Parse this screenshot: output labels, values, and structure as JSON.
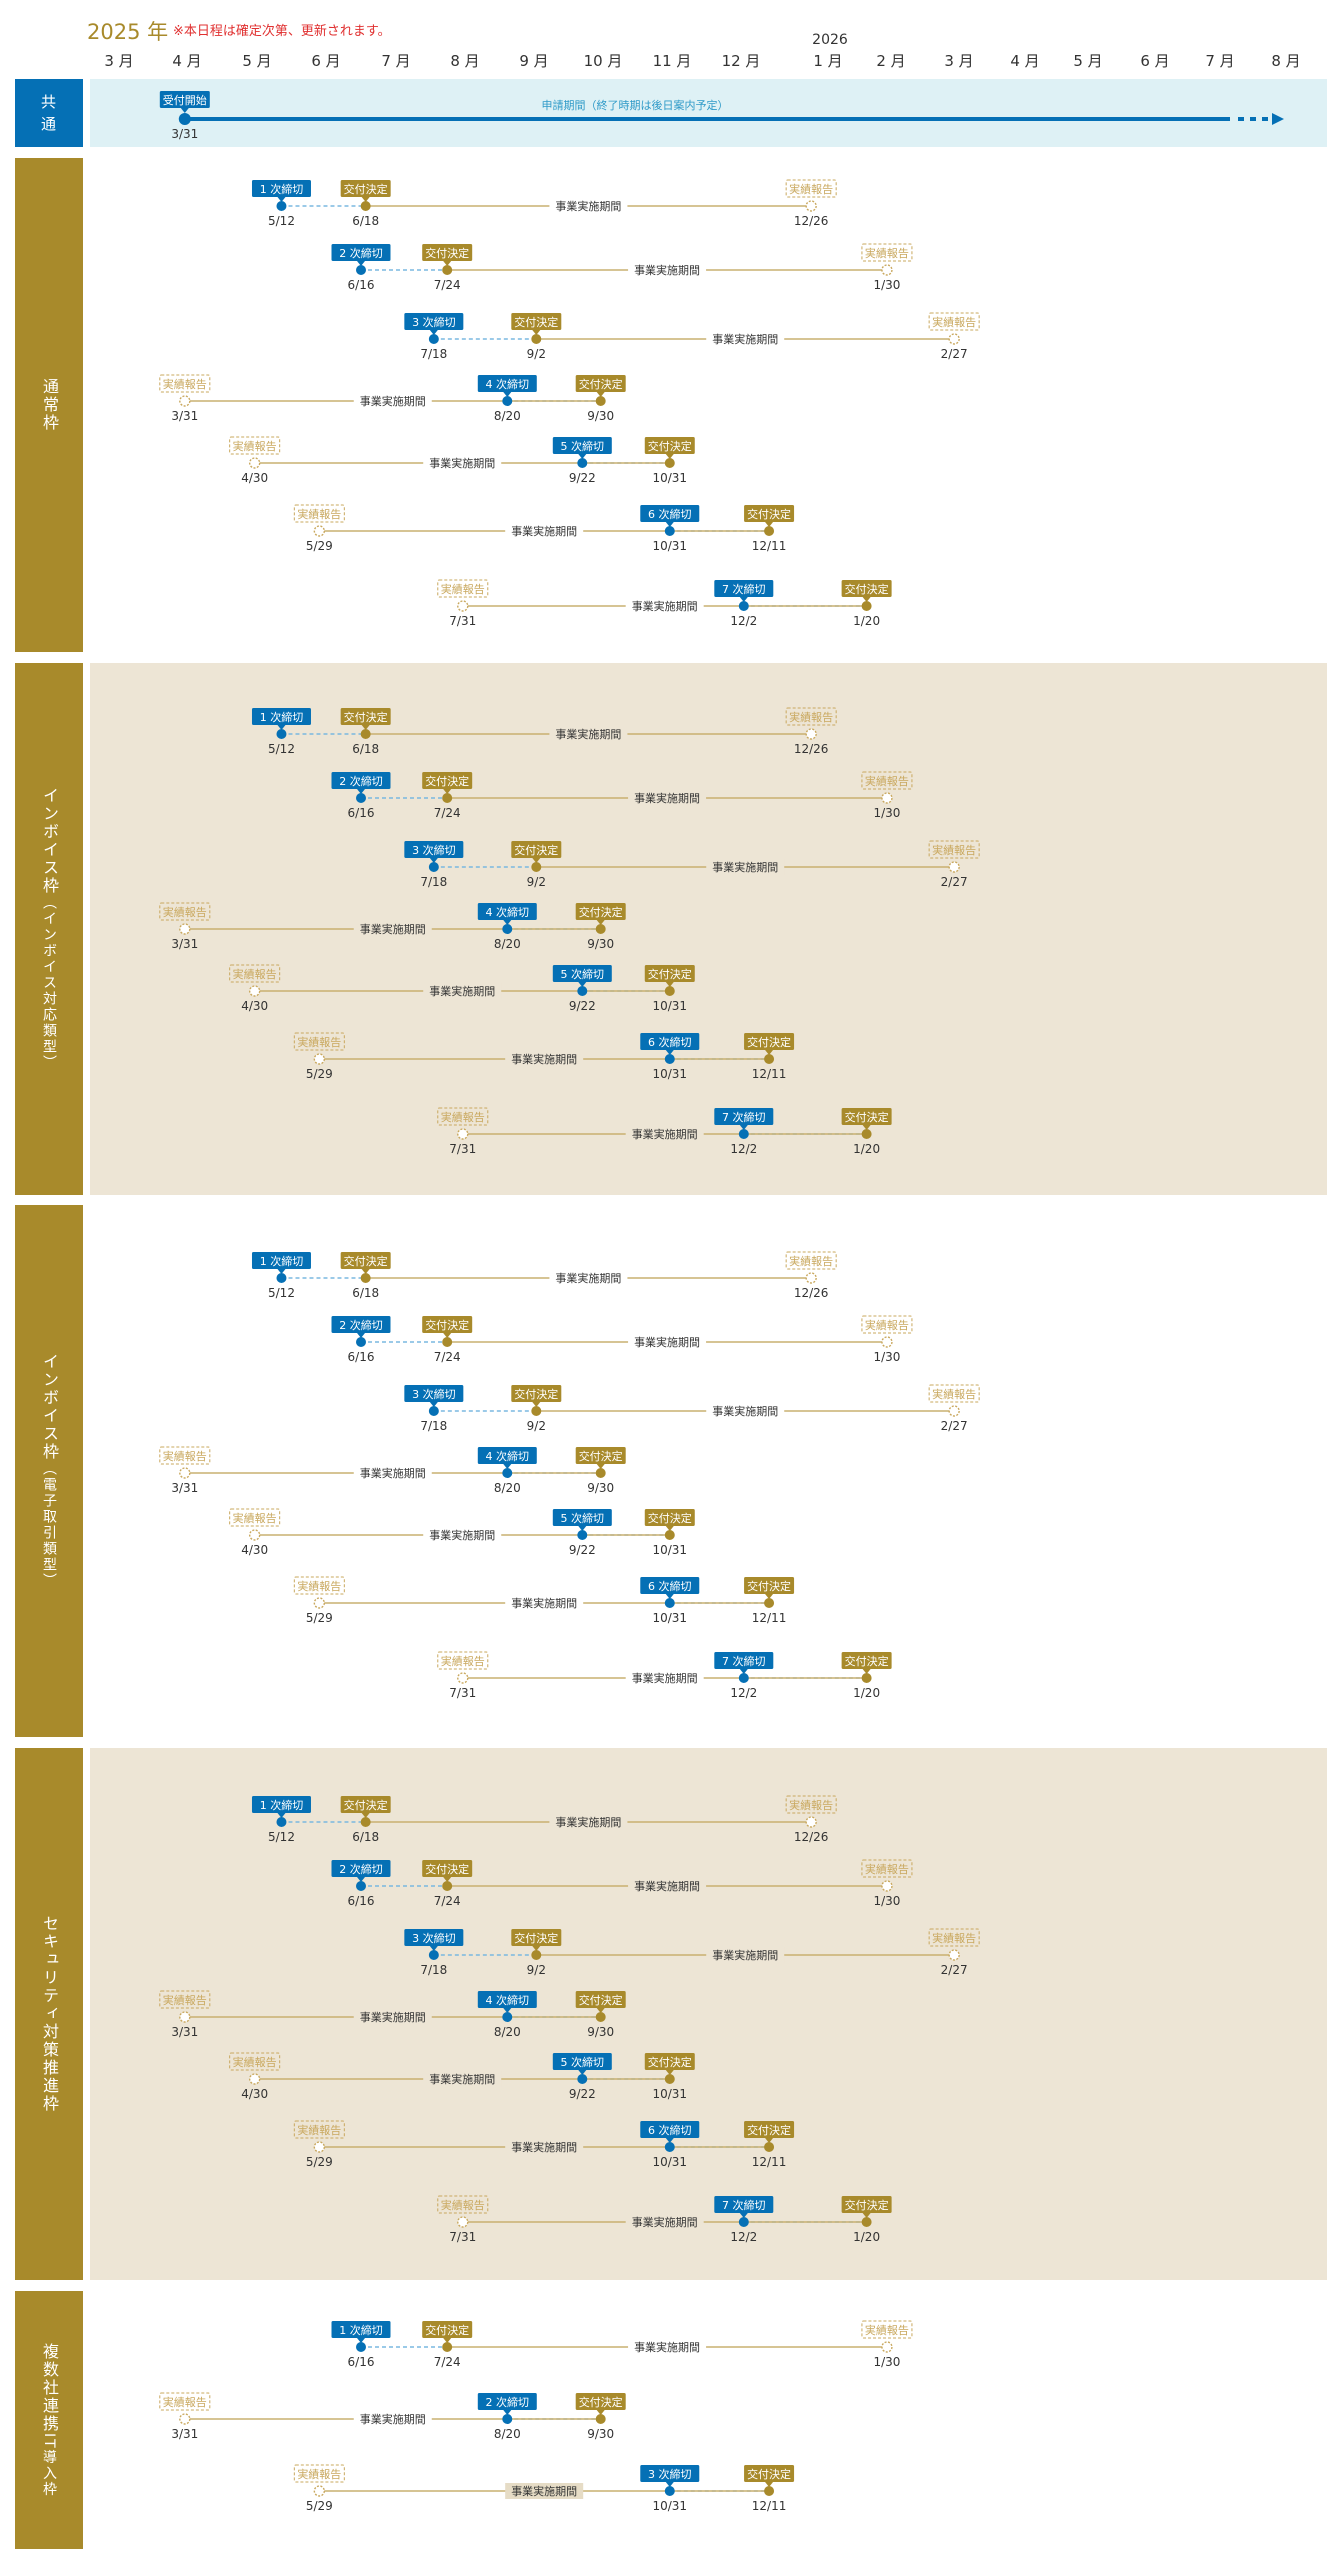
{
  "header": {
    "year_title": "2025 年",
    "note": "※本日程は確定次第、更新されます。",
    "next_year": "2026",
    "months": [
      "3 月",
      "4 月",
      "5 月",
      "6 月",
      "7 月",
      "8 月",
      "9 月",
      "10 月",
      "11 月",
      "12 月",
      "1 月",
      "2 月",
      "3 月",
      "4 月",
      "5 月",
      "6 月",
      "7 月",
      "8 月"
    ]
  },
  "labels": {
    "start_label": "受付開始",
    "start_date": "3/31",
    "application_period": "申請期間（終了時期は後日案内予定）",
    "decision": "交付決定",
    "report": "実績報告",
    "period": "事業実施期間"
  },
  "colors": {
    "gold": "#a88a2b",
    "blue": "#0570b5",
    "beige_bg": "#ede5d5",
    "common_bg": "#def1f5",
    "report_gold": "#c9a85e"
  },
  "sections": [
    {
      "id": "common",
      "label": "共通",
      "sublabel": "",
      "kind": "common"
    },
    {
      "id": "regular",
      "label": "通常枠",
      "sublabel": "",
      "kind": "rounds",
      "rounds": [
        {
          "name": "1 次締切",
          "deadline": "5/12",
          "decision": "6/18",
          "report": "12/26"
        },
        {
          "name": "2 次締切",
          "deadline": "6/16",
          "decision": "7/24",
          "report": "1/30"
        },
        {
          "name": "3 次締切",
          "deadline": "7/18",
          "decision": "9/2",
          "report": "2/27"
        },
        {
          "name": "4 次締切",
          "deadline": "8/20",
          "decision": "9/30",
          "report": "3/31"
        },
        {
          "name": "5 次締切",
          "deadline": "9/22",
          "decision": "10/31",
          "report": "4/30"
        },
        {
          "name": "6 次締切",
          "deadline": "10/31",
          "decision": "12/11",
          "report": "5/29"
        },
        {
          "name": "7 次締切",
          "deadline": "12/2",
          "decision": "1/20",
          "report": "7/31"
        }
      ]
    },
    {
      "id": "invoice-support",
      "label": "インボイス枠",
      "sublabel": "（インボイス対応類型）",
      "kind": "rounds",
      "rounds": [
        {
          "name": "1 次締切",
          "deadline": "5/12",
          "decision": "6/18",
          "report": "12/26"
        },
        {
          "name": "2 次締切",
          "deadline": "6/16",
          "decision": "7/24",
          "report": "1/30"
        },
        {
          "name": "3 次締切",
          "deadline": "7/18",
          "decision": "9/2",
          "report": "2/27"
        },
        {
          "name": "4 次締切",
          "deadline": "8/20",
          "decision": "9/30",
          "report": "3/31"
        },
        {
          "name": "5 次締切",
          "deadline": "9/22",
          "decision": "10/31",
          "report": "4/30"
        },
        {
          "name": "6 次締切",
          "deadline": "10/31",
          "decision": "12/11",
          "report": "5/29"
        },
        {
          "name": "7 次締切",
          "deadline": "12/2",
          "decision": "1/20",
          "report": "7/31"
        }
      ]
    },
    {
      "id": "invoice-edi",
      "label": "インボイス枠",
      "sublabel": "（電子取引類型）",
      "kind": "rounds",
      "rounds": [
        {
          "name": "1 次締切",
          "deadline": "5/12",
          "decision": "6/18",
          "report": "12/26"
        },
        {
          "name": "2 次締切",
          "deadline": "6/16",
          "decision": "7/24",
          "report": "1/30"
        },
        {
          "name": "3 次締切",
          "deadline": "7/18",
          "decision": "9/2",
          "report": "2/27"
        },
        {
          "name": "4 次締切",
          "deadline": "8/20",
          "decision": "9/30",
          "report": "3/31"
        },
        {
          "name": "5 次締切",
          "deadline": "9/22",
          "decision": "10/31",
          "report": "4/30"
        },
        {
          "name": "6 次締切",
          "deadline": "10/31",
          "decision": "12/11",
          "report": "5/29"
        },
        {
          "name": "7 次締切",
          "deadline": "12/2",
          "decision": "1/20",
          "report": "7/31"
        }
      ]
    },
    {
      "id": "security",
      "label": "セキュリティ対策推進枠",
      "sublabel": "",
      "kind": "rounds",
      "rounds": [
        {
          "name": "1 次締切",
          "deadline": "5/12",
          "decision": "6/18",
          "report": "12/26"
        },
        {
          "name": "2 次締切",
          "deadline": "6/16",
          "decision": "7/24",
          "report": "1/30"
        },
        {
          "name": "3 次締切",
          "deadline": "7/18",
          "decision": "9/2",
          "report": "2/27"
        },
        {
          "name": "4 次締切",
          "deadline": "8/20",
          "decision": "9/30",
          "report": "3/31"
        },
        {
          "name": "5 次締切",
          "deadline": "9/22",
          "decision": "10/31",
          "report": "4/30"
        },
        {
          "name": "6 次締切",
          "deadline": "10/31",
          "decision": "12/11",
          "report": "5/29"
        },
        {
          "name": "7 次締切",
          "deadline": "12/2",
          "decision": "1/20",
          "report": "7/31"
        }
      ]
    },
    {
      "id": "multi-company",
      "label": "複数社連携",
      "sublabel": "IT導入枠",
      "kind": "rounds",
      "rounds": [
        {
          "name": "1 次締切",
          "deadline": "6/16",
          "decision": "7/24",
          "report": "1/30"
        },
        {
          "name": "2 次締切",
          "deadline": "8/20",
          "decision": "9/30",
          "report": "3/31"
        },
        {
          "name": "3 次締切",
          "deadline": "10/31",
          "decision": "12/11",
          "report": "5/29"
        }
      ]
    }
  ]
}
